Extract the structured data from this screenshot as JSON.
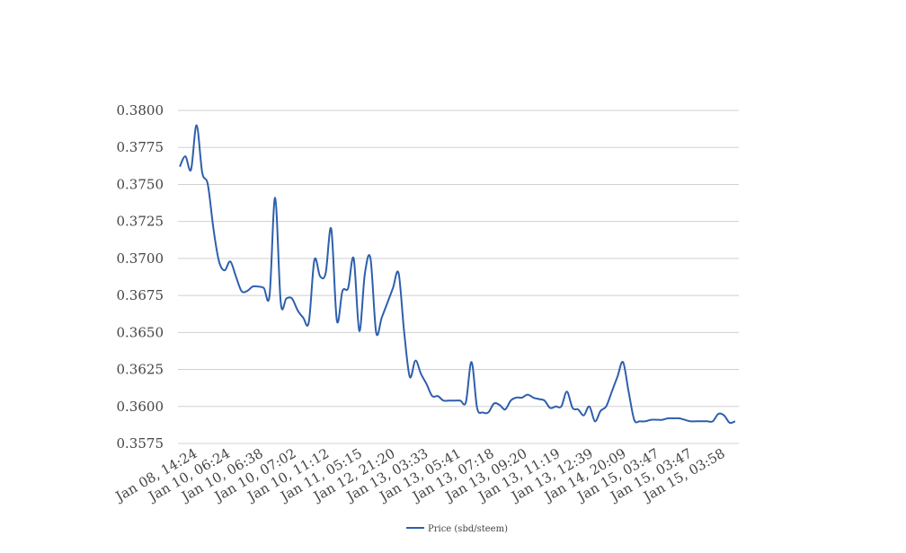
{
  "chart_data": {
    "type": "line",
    "title": "",
    "xlabel": "",
    "ylabel": "",
    "ylim": [
      0.3575,
      0.38
    ],
    "yticks": [
      "0.3800",
      "0.3775",
      "0.3750",
      "0.3725",
      "0.3700",
      "0.3675",
      "0.3650",
      "0.3625",
      "0.3600",
      "0.3575"
    ],
    "ytick_values": [
      0.38,
      0.3775,
      0.375,
      0.3725,
      0.37,
      0.3675,
      0.365,
      0.3625,
      0.36,
      0.3575
    ],
    "xtick_labels": [
      "Jan 08, 14:24",
      "Jan 10, 06:24",
      "Jan 10, 06:38",
      "Jan 10, 07:02",
      "Jan 10, 11:12",
      "Jan 11, 05:15",
      "Jan 12, 21:20",
      "Jan 13, 03:33",
      "Jan 13, 05:41",
      "Jan 13, 07:18",
      "Jan 13, 09:20",
      "Jan 13, 11:19",
      "Jan 13, 12:39",
      "Jan 14, 20:09",
      "Jan 15, 03:47",
      "Jan 15, 03:47",
      "Jan 15, 03:58"
    ],
    "grid": true,
    "legend_position": "bottom",
    "series": [
      {
        "name": "Price (sbd/steem)",
        "color": "#2e5fad",
        "values": [
          0.3762,
          0.3769,
          0.376,
          0.379,
          0.3758,
          0.375,
          0.372,
          0.3698,
          0.3692,
          0.3698,
          0.3688,
          0.3678,
          0.3678,
          0.3681,
          0.3681,
          0.368,
          0.3675,
          0.3741,
          0.367,
          0.3673,
          0.3673,
          0.3665,
          0.366,
          0.3657,
          0.3699,
          0.3688,
          0.369,
          0.372,
          0.3658,
          0.3678,
          0.368,
          0.37,
          0.3651,
          0.369,
          0.37,
          0.365,
          0.366,
          0.367,
          0.368,
          0.369,
          0.365,
          0.362,
          0.3631,
          0.3622,
          0.3615,
          0.3607,
          0.3607,
          0.3604,
          0.3604,
          0.3604,
          0.3604,
          0.3603,
          0.363,
          0.3599,
          0.3596,
          0.3596,
          0.3602,
          0.3601,
          0.3598,
          0.3604,
          0.3606,
          0.3606,
          0.3608,
          0.3606,
          0.3605,
          0.3604,
          0.3599,
          0.36,
          0.36,
          0.361,
          0.3599,
          0.3598,
          0.3594,
          0.36,
          0.359,
          0.3597,
          0.36,
          0.361,
          0.362,
          0.363,
          0.361,
          0.3591,
          0.359,
          0.359,
          0.3591,
          0.3591,
          0.3591,
          0.3592,
          0.3592,
          0.3592,
          0.3591,
          0.359,
          0.359,
          0.359,
          0.359,
          0.359,
          0.3595,
          0.3594,
          0.3589,
          0.359
        ]
      }
    ]
  }
}
